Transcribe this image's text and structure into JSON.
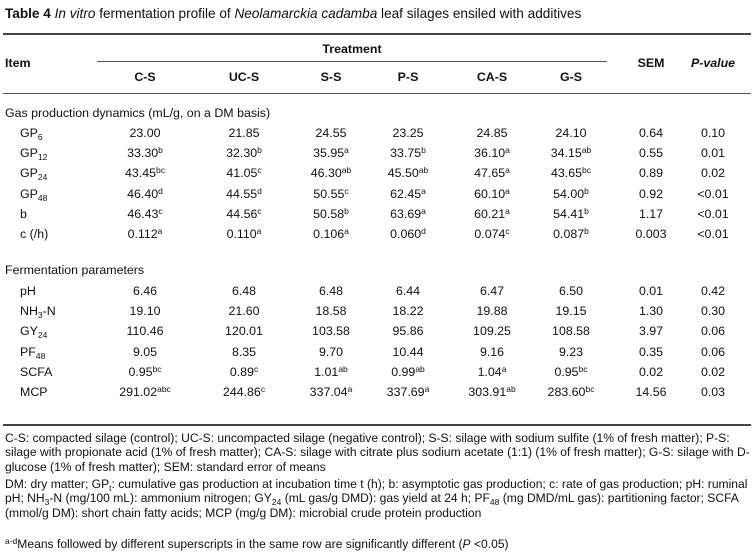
{
  "title": {
    "label": "Table 4",
    "text_pre": "In vitro",
    "text_mid": " fermentation profile of ",
    "species": "Neolamarckia cadamba",
    "text_post": " leaf silages ensiled with additives"
  },
  "header": {
    "item": "Item",
    "treatment": "Treatment",
    "sem": "SEM",
    "pvalue": "P-value",
    "columns": [
      "C-S",
      "UC-S",
      "S-S",
      "P-S",
      "CA-S",
      "G-S"
    ]
  },
  "sections": [
    {
      "title": "Gas production dynamics (mL/g, on a DM basis)",
      "rows": [
        {
          "label": "GP",
          "sub": "6",
          "values": [
            [
              "23.00",
              ""
            ],
            [
              "21.85",
              ""
            ],
            [
              "24.55",
              ""
            ],
            [
              "23.25",
              ""
            ],
            [
              "24.85",
              ""
            ],
            [
              "24.10",
              ""
            ]
          ],
          "sem": "0.64",
          "p": "0.10"
        },
        {
          "label": "GP",
          "sub": "12",
          "values": [
            [
              "33.30",
              "b"
            ],
            [
              "32.30",
              "b"
            ],
            [
              "35.95",
              "a"
            ],
            [
              "33.75",
              "b"
            ],
            [
              "36.10",
              "a"
            ],
            [
              "34.15",
              "ab"
            ]
          ],
          "sem": "0.55",
          "p": "0.01"
        },
        {
          "label": "GP",
          "sub": "24",
          "values": [
            [
              "43.45",
              "bc"
            ],
            [
              "41.05",
              "c"
            ],
            [
              "46.30",
              "ab"
            ],
            [
              "45.50",
              "ab"
            ],
            [
              "47.65",
              "a"
            ],
            [
              "43.65",
              "bc"
            ]
          ],
          "sem": "0.89",
          "p": "0.02"
        },
        {
          "label": "GP",
          "sub": "48",
          "values": [
            [
              "46.40",
              "d"
            ],
            [
              "44.55",
              "d"
            ],
            [
              "50.55",
              "c"
            ],
            [
              "62.45",
              "a"
            ],
            [
              "60.10",
              "a"
            ],
            [
              "54.00",
              "b"
            ]
          ],
          "sem": "0.92",
          "p": "<0.01"
        },
        {
          "label": "b",
          "sub": "",
          "values": [
            [
              "46.43",
              "c"
            ],
            [
              "44.56",
              "c"
            ],
            [
              "50.58",
              "b"
            ],
            [
              "63.69",
              "a"
            ],
            [
              "60.21",
              "a"
            ],
            [
              "54.41",
              "b"
            ]
          ],
          "sem": "1.17",
          "p": "<0.01"
        },
        {
          "label": "c (/h)",
          "sub": "",
          "values": [
            [
              "0.112",
              "a"
            ],
            [
              "0.110",
              "a"
            ],
            [
              "0.106",
              "a"
            ],
            [
              "0.060",
              "d"
            ],
            [
              "0.074",
              "c"
            ],
            [
              "0.087",
              "b"
            ]
          ],
          "sem": "0.003",
          "p": "<0.01"
        }
      ]
    },
    {
      "title": "Fermentation parameters",
      "rows": [
        {
          "label": "pH",
          "sub": "",
          "values": [
            [
              "6.46",
              ""
            ],
            [
              "6.48",
              ""
            ],
            [
              "6.48",
              ""
            ],
            [
              "6.44",
              ""
            ],
            [
              "6.47",
              ""
            ],
            [
              "6.50",
              ""
            ]
          ],
          "sem": "0.01",
          "p": "0.42"
        },
        {
          "label": "NH",
          "sub": "3",
          "label_tail": "-N",
          "values": [
            [
              "19.10",
              ""
            ],
            [
              "21.60",
              ""
            ],
            [
              "18.58",
              ""
            ],
            [
              "18.22",
              ""
            ],
            [
              "19.88",
              ""
            ],
            [
              "19.15",
              ""
            ]
          ],
          "sem": "1.30",
          "p": "0.30"
        },
        {
          "label": "GY",
          "sub": "24",
          "values": [
            [
              "110.46",
              ""
            ],
            [
              "120.01",
              ""
            ],
            [
              "103.58",
              ""
            ],
            [
              "95.86",
              ""
            ],
            [
              "109.25",
              ""
            ],
            [
              "108.58",
              ""
            ]
          ],
          "sem": "3.97",
          "p": "0.06"
        },
        {
          "label": "PF",
          "sub": "48",
          "values": [
            [
              "9.05",
              ""
            ],
            [
              "8.35",
              ""
            ],
            [
              "9.70",
              ""
            ],
            [
              "10.44",
              ""
            ],
            [
              "9.16",
              ""
            ],
            [
              "9.23",
              ""
            ]
          ],
          "sem": "0.35",
          "p": "0.06"
        },
        {
          "label": "SCFA",
          "sub": "",
          "values": [
            [
              "0.95",
              "bc"
            ],
            [
              "0.89",
              "c"
            ],
            [
              "1.01",
              "ab"
            ],
            [
              "0.99",
              "ab"
            ],
            [
              "1.04",
              "a"
            ],
            [
              "0.95",
              "bc"
            ]
          ],
          "sem": "0.02",
          "p": "0.02"
        },
        {
          "label": "MCP",
          "sub": "",
          "values": [
            [
              "291.02",
              "abc"
            ],
            [
              "244.86",
              "c"
            ],
            [
              "337.04",
              "a"
            ],
            [
              "337.69",
              "a"
            ],
            [
              "303.91",
              "ab"
            ],
            [
              "283.60",
              "bc"
            ]
          ],
          "sem": "14.56",
          "p": "0.03"
        }
      ]
    }
  ],
  "footnotes": {
    "f1": "C-S: compacted silage (control); UC-S: uncompacted silage (negative control); S-S: silage with sodium sulfite (1% of fresh matter); P-S: silage with propionate acid (1% of fresh matter); CA-S: silage with citrate plus sodium acetate (1:1) (1% of fresh matter); G-S: silage with D-glucose (1% of fresh matter); SEM: standard error of means",
    "f2": {
      "p1": "DM: dry matter; GP",
      "s1": "t",
      "p2": ": cumulative gas production at incubation time t (h); b: asymptotic gas production; c: rate of gas production; pH: ruminal pH; NH",
      "s2": "3",
      "p3": "-N (mg/100 mL): ammonium nitrogen; GY",
      "s3": "24",
      "p4": " (mL gas/g DMD): gas yield at 24 h; PF",
      "s4": "48",
      "p5": " (mg DMD/mL gas): partitioning factor; SCFA (mmol/g DM): short chain fatty acids; MCP (mg/g DM): microbial crude protein production"
    },
    "f3": {
      "sup": "a-d",
      "text": "Means followed by different superscripts in the same row are significantly different (",
      "italic": "P",
      "tail": " <0.05)"
    }
  }
}
